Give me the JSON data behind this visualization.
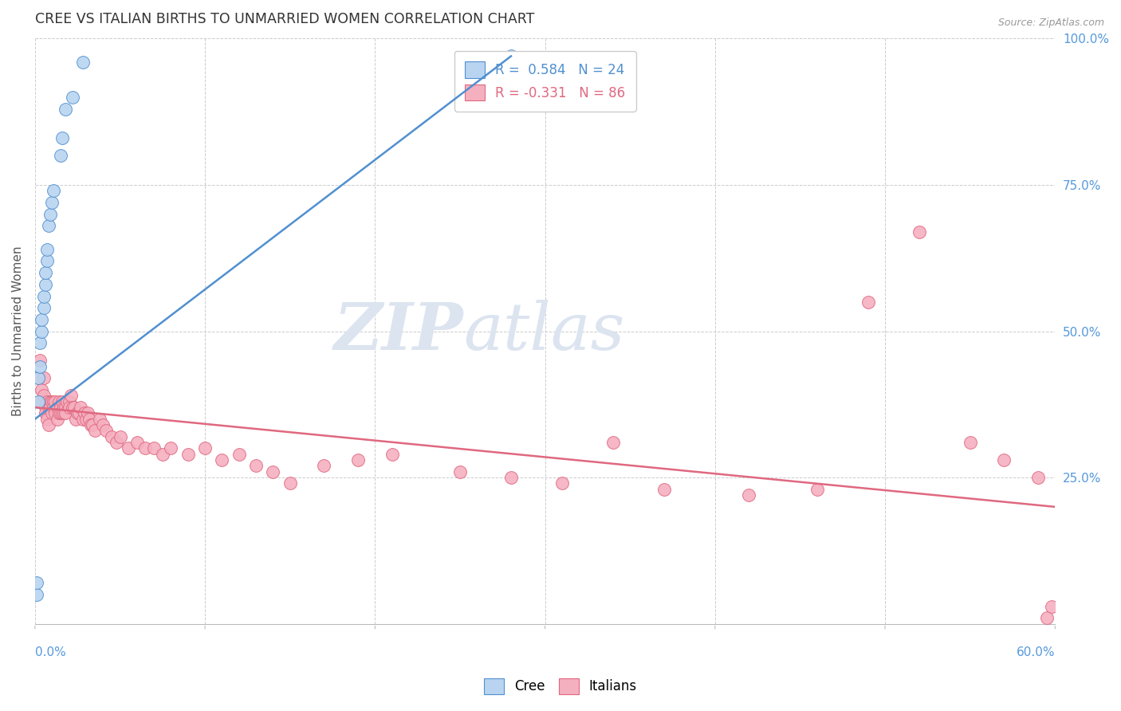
{
  "title": "CREE VS ITALIAN BIRTHS TO UNMARRIED WOMEN CORRELATION CHART",
  "source": "Source: ZipAtlas.com",
  "ylabel": "Births to Unmarried Women",
  "xmin": 0.0,
  "xmax": 0.6,
  "ymin": 0.0,
  "ymax": 1.0,
  "cree_R": 0.584,
  "cree_N": 24,
  "italian_R": -0.331,
  "italian_N": 86,
  "cree_color": "#b8d4f0",
  "italian_color": "#f5b0c0",
  "cree_line_color": "#5090d0",
  "italian_line_color": "#e06880",
  "background_color": "#ffffff",
  "grid_color": "#cccccc",
  "watermark_color": "#dce4f0",
  "title_color": "#333333",
  "source_color": "#999999",
  "axis_label_color": "#5599dd",
  "cree_x": [
    0.001,
    0.001,
    0.002,
    0.002,
    0.003,
    0.003,
    0.004,
    0.004,
    0.005,
    0.005,
    0.006,
    0.006,
    0.007,
    0.007,
    0.008,
    0.009,
    0.01,
    0.011,
    0.015,
    0.016,
    0.018,
    0.022,
    0.028,
    0.28
  ],
  "cree_y": [
    0.05,
    0.07,
    0.38,
    0.42,
    0.44,
    0.48,
    0.5,
    0.52,
    0.54,
    0.56,
    0.58,
    0.6,
    0.62,
    0.64,
    0.68,
    0.7,
    0.72,
    0.74,
    0.8,
    0.83,
    0.88,
    0.9,
    0.96,
    0.97
  ],
  "italian_x": [
    0.002,
    0.003,
    0.004,
    0.004,
    0.005,
    0.005,
    0.006,
    0.006,
    0.007,
    0.007,
    0.008,
    0.008,
    0.009,
    0.009,
    0.01,
    0.01,
    0.011,
    0.011,
    0.012,
    0.012,
    0.013,
    0.013,
    0.014,
    0.014,
    0.015,
    0.015,
    0.016,
    0.016,
    0.017,
    0.017,
    0.018,
    0.018,
    0.019,
    0.02,
    0.02,
    0.021,
    0.022,
    0.023,
    0.024,
    0.025,
    0.026,
    0.027,
    0.028,
    0.029,
    0.03,
    0.031,
    0.032,
    0.033,
    0.034,
    0.035,
    0.038,
    0.04,
    0.042,
    0.045,
    0.048,
    0.05,
    0.055,
    0.06,
    0.065,
    0.07,
    0.075,
    0.08,
    0.09,
    0.1,
    0.11,
    0.12,
    0.13,
    0.14,
    0.15,
    0.17,
    0.19,
    0.21,
    0.25,
    0.28,
    0.31,
    0.34,
    0.37,
    0.42,
    0.46,
    0.49,
    0.52,
    0.55,
    0.57,
    0.59,
    0.595,
    0.598
  ],
  "italian_y": [
    0.42,
    0.45,
    0.4,
    0.38,
    0.42,
    0.39,
    0.37,
    0.36,
    0.38,
    0.35,
    0.37,
    0.34,
    0.38,
    0.37,
    0.38,
    0.36,
    0.38,
    0.37,
    0.38,
    0.36,
    0.37,
    0.35,
    0.38,
    0.36,
    0.37,
    0.36,
    0.38,
    0.36,
    0.37,
    0.36,
    0.37,
    0.36,
    0.38,
    0.38,
    0.37,
    0.39,
    0.37,
    0.37,
    0.35,
    0.36,
    0.36,
    0.37,
    0.35,
    0.36,
    0.35,
    0.36,
    0.35,
    0.34,
    0.34,
    0.33,
    0.35,
    0.34,
    0.33,
    0.32,
    0.31,
    0.32,
    0.3,
    0.31,
    0.3,
    0.3,
    0.29,
    0.3,
    0.29,
    0.3,
    0.28,
    0.29,
    0.27,
    0.26,
    0.24,
    0.27,
    0.28,
    0.29,
    0.26,
    0.25,
    0.24,
    0.31,
    0.23,
    0.22,
    0.23,
    0.55,
    0.67,
    0.31,
    0.28,
    0.25,
    0.01,
    0.03
  ],
  "cree_trendline_x": [
    0.0,
    0.28
  ],
  "cree_trendline_y": [
    0.35,
    0.97
  ],
  "italian_trendline_x": [
    0.0,
    0.6
  ],
  "italian_trendline_y": [
    0.37,
    0.2
  ]
}
